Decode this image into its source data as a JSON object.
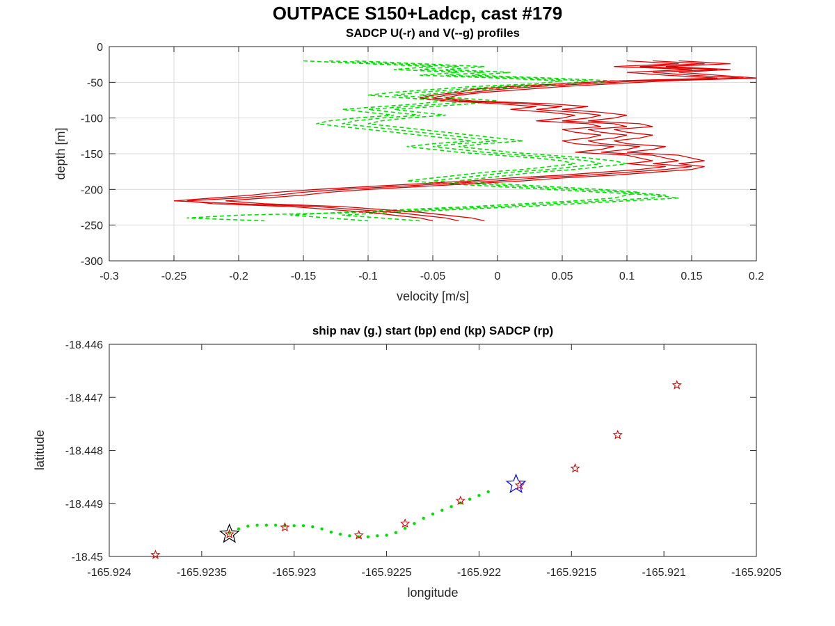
{
  "figure": {
    "title": "OUTPACE S150+Ladcp, cast #179"
  },
  "colors": {
    "u_profile": "#e00000",
    "v_profile": "#00e000",
    "ship_nav": "#00e000",
    "start_marker": "#0000ff",
    "end_marker": "#000000",
    "sadcp_points": "#e00000"
  },
  "chart_data": [
    {
      "type": "line",
      "title": "SADCP U(-r) and V(--g) profiles",
      "xlabel": "velocity [m/s]",
      "ylabel": "depth [m]",
      "xlim": [
        -0.3,
        0.2
      ],
      "ylim": [
        -300,
        0
      ],
      "xticks": [
        -0.3,
        -0.25,
        -0.2,
        -0.15,
        -0.1,
        -0.05,
        0,
        0.05,
        0.1,
        0.15,
        0.2
      ],
      "xtick_labels": [
        "-0.3",
        "-0.25",
        "-0.2",
        "-0.15",
        "-0.1",
        "-0.05",
        "0",
        "0.05",
        "0.1",
        "0.15",
        "0.2"
      ],
      "yticks": [
        0,
        -50,
        -100,
        -150,
        -200,
        -250,
        -300
      ],
      "ytick_labels": [
        "0",
        "-50",
        "-100",
        "-150",
        "-200",
        "-250",
        "-300"
      ],
      "grid": true,
      "depth": [
        -20,
        -24,
        -28,
        -32,
        -36,
        -40,
        -44,
        -48,
        -52,
        -56,
        -60,
        -64,
        -68,
        -72,
        -76,
        -80,
        -84,
        -88,
        -92,
        -96,
        -100,
        -104,
        -108,
        -112,
        -116,
        -120,
        -124,
        -128,
        -132,
        -136,
        -140,
        -144,
        -148,
        -152,
        -156,
        -160,
        -164,
        -168,
        -172,
        -176,
        -180,
        -184,
        -188,
        -192,
        -196,
        -200,
        -204,
        -208,
        -212,
        -216,
        -220,
        -224,
        -228,
        -232,
        -236,
        -240,
        -244
      ],
      "series": [
        {
          "style": "solid",
          "color": "red",
          "values": [
            0.12,
            0.16,
            0.11,
            0.17,
            0.12,
            0.15,
            0.19,
            0.11,
            0.07,
            0.03,
            0.0,
            -0.02,
            -0.04,
            -0.05,
            -0.03,
            0.02,
            0.05,
            0.03,
            0.06,
            0.08,
            0.07,
            0.05,
            0.09,
            0.1,
            0.07,
            0.08,
            0.1,
            0.09,
            0.07,
            0.08,
            0.11,
            0.1,
            0.08,
            0.12,
            0.13,
            0.14,
            0.12,
            0.15,
            0.13,
            0.1,
            0.07,
            0.03,
            0.0,
            -0.04,
            -0.08,
            -0.12,
            -0.15,
            -0.17,
            -0.2,
            -0.24,
            -0.22,
            -0.16,
            -0.13,
            -0.1,
            -0.08,
            -0.06,
            -0.05
          ]
        },
        {
          "style": "solid",
          "color": "red",
          "values": [
            0.1,
            0.14,
            0.09,
            0.15,
            0.1,
            0.13,
            0.17,
            0.09,
            0.05,
            0.01,
            -0.02,
            -0.03,
            -0.05,
            -0.06,
            -0.04,
            0.0,
            0.03,
            0.01,
            0.04,
            0.06,
            0.05,
            0.03,
            0.07,
            0.08,
            0.05,
            0.06,
            0.08,
            0.07,
            0.05,
            0.06,
            0.09,
            0.08,
            0.06,
            0.1,
            0.11,
            0.12,
            0.1,
            0.13,
            0.11,
            0.08,
            0.05,
            0.01,
            -0.02,
            -0.06,
            -0.1,
            -0.14,
            -0.17,
            -0.19,
            -0.22,
            -0.25,
            -0.2,
            -0.14,
            -0.11,
            -0.08,
            -0.06,
            -0.04,
            -0.03
          ]
        },
        {
          "style": "solid",
          "color": "red",
          "values": [
            0.14,
            0.18,
            0.13,
            0.18,
            0.14,
            0.17,
            0.2,
            0.13,
            0.09,
            0.05,
            0.02,
            -0.01,
            -0.03,
            -0.04,
            -0.02,
            0.04,
            0.07,
            0.05,
            0.08,
            0.1,
            0.09,
            0.07,
            0.11,
            0.12,
            0.09,
            0.1,
            0.12,
            0.11,
            0.09,
            0.1,
            0.13,
            0.12,
            0.1,
            0.14,
            0.15,
            0.16,
            0.14,
            0.16,
            0.15,
            0.12,
            0.09,
            0.05,
            0.02,
            -0.02,
            -0.06,
            -0.1,
            -0.13,
            -0.15,
            -0.18,
            -0.21,
            -0.18,
            -0.12,
            -0.09,
            -0.06,
            -0.04,
            -0.02,
            -0.01
          ]
        },
        {
          "style": "dashed",
          "color": "green",
          "values": [
            -0.15,
            -0.1,
            -0.05,
            -0.08,
            -0.03,
            -0.06,
            0.0,
            0.05,
            0.03,
            -0.02,
            -0.05,
            -0.08,
            -0.1,
            -0.07,
            -0.04,
            -0.06,
            -0.09,
            -0.12,
            -0.1,
            -0.08,
            -0.11,
            -0.13,
            -0.14,
            -0.12,
            -0.1,
            -0.08,
            -0.06,
            -0.04,
            -0.02,
            -0.05,
            -0.07,
            -0.05,
            -0.03,
            0.0,
            0.03,
            0.05,
            0.06,
            0.04,
            0.02,
            -0.01,
            -0.03,
            -0.05,
            -0.07,
            -0.04,
            0.0,
            0.04,
            0.08,
            0.12,
            0.14,
            0.1,
            0.06,
            0.02,
            -0.03,
            -0.08,
            -0.12,
            -0.09,
            -0.06
          ]
        },
        {
          "style": "dashed",
          "color": "green",
          "values": [
            -0.13,
            -0.08,
            -0.03,
            -0.06,
            -0.01,
            -0.04,
            0.02,
            0.07,
            0.05,
            0.0,
            -0.03,
            -0.06,
            -0.08,
            -0.05,
            -0.02,
            -0.04,
            -0.07,
            -0.1,
            -0.08,
            -0.06,
            -0.09,
            -0.11,
            -0.12,
            -0.1,
            -0.08,
            -0.06,
            -0.04,
            -0.02,
            0.0,
            -0.03,
            -0.05,
            -0.03,
            -0.01,
            0.02,
            0.05,
            0.07,
            0.08,
            0.06,
            0.04,
            0.01,
            -0.01,
            -0.03,
            -0.05,
            -0.02,
            0.02,
            0.06,
            0.1,
            0.13,
            0.12,
            0.08,
            0.04,
            0.0,
            -0.05,
            -0.1,
            -0.2,
            -0.24,
            -0.18
          ]
        },
        {
          "style": "dashed",
          "color": "green",
          "values": [
            -0.11,
            -0.06,
            -0.01,
            -0.04,
            0.01,
            -0.02,
            0.04,
            0.09,
            0.07,
            0.02,
            -0.01,
            -0.04,
            -0.06,
            -0.03,
            0.0,
            -0.02,
            -0.05,
            -0.08,
            -0.06,
            -0.04,
            -0.07,
            -0.09,
            -0.1,
            -0.08,
            -0.06,
            -0.04,
            -0.02,
            0.0,
            0.02,
            -0.01,
            -0.03,
            -0.01,
            0.01,
            0.04,
            0.07,
            0.09,
            0.1,
            0.08,
            0.06,
            0.03,
            0.01,
            -0.01,
            -0.03,
            0.0,
            0.04,
            0.08,
            0.11,
            0.1,
            0.09,
            0.06,
            0.02,
            -0.02,
            -0.07,
            -0.12,
            -0.16,
            -0.13,
            -0.1
          ]
        }
      ]
    },
    {
      "type": "scatter",
      "title": "ship nav (g.) start (bp) end (kp) SADCP (rp)",
      "xlabel": "longitude",
      "ylabel": "latitude",
      "xlim": [
        -165.924,
        -165.9205
      ],
      "ylim": [
        -18.45,
        -18.446
      ],
      "xticks": [
        -165.924,
        -165.9235,
        -165.923,
        -165.9225,
        -165.922,
        -165.9215,
        -165.921,
        -165.9205
      ],
      "xtick_labels": [
        "-165.924",
        "-165.9235",
        "-165.923",
        "-165.9225",
        "-165.922",
        "-165.9215",
        "-165.921",
        "-165.9205"
      ],
      "yticks": [
        -18.446,
        -18.447,
        -18.448,
        -18.449,
        -18.45
      ],
      "ytick_labels": [
        "-18.446",
        "-18.447",
        "-18.448",
        "-18.449",
        "-18.45"
      ],
      "grid": false,
      "ship_nav": {
        "lon": [
          -165.92335,
          -165.9233,
          -165.92325,
          -165.9232,
          -165.92315,
          -165.9231,
          -165.92305,
          -165.923,
          -165.92295,
          -165.9229,
          -165.92285,
          -165.9228,
          -165.92275,
          -165.9227,
          -165.92265,
          -165.9226,
          -165.92255,
          -165.9225,
          -165.92245,
          -165.9224,
          -165.92235,
          -165.9223,
          -165.92225,
          -165.9222,
          -165.92215,
          -165.9221,
          -165.92205,
          -165.922,
          -165.92195
        ],
        "lat": [
          -18.44956,
          -18.44948,
          -18.44943,
          -18.44941,
          -18.44941,
          -18.44941,
          -18.44942,
          -18.44942,
          -18.44942,
          -18.44944,
          -18.44948,
          -18.44954,
          -18.44958,
          -18.44961,
          -18.44963,
          -18.44963,
          -18.44961,
          -18.4496,
          -18.44955,
          -18.44947,
          -18.44938,
          -18.44928,
          -18.4492,
          -18.44913,
          -18.44906,
          -18.44899,
          -18.44892,
          -18.44885,
          -18.44878
        ]
      },
      "start": {
        "lon": -165.9218,
        "lat": -18.44864
      },
      "end": {
        "lon": -165.92335,
        "lat": -18.44958
      },
      "sadcp": {
        "lon": [
          -165.92375,
          -165.92335,
          -165.92305,
          -165.92265,
          -165.9224,
          -165.9221,
          -165.92178,
          -165.92148,
          -165.92125,
          -165.92093
        ],
        "lat": [
          -18.44997,
          -18.44958,
          -18.44945,
          -18.4496,
          -18.44938,
          -18.44895,
          -18.44866,
          -18.44834,
          -18.44771,
          -18.44677
        ]
      }
    }
  ]
}
